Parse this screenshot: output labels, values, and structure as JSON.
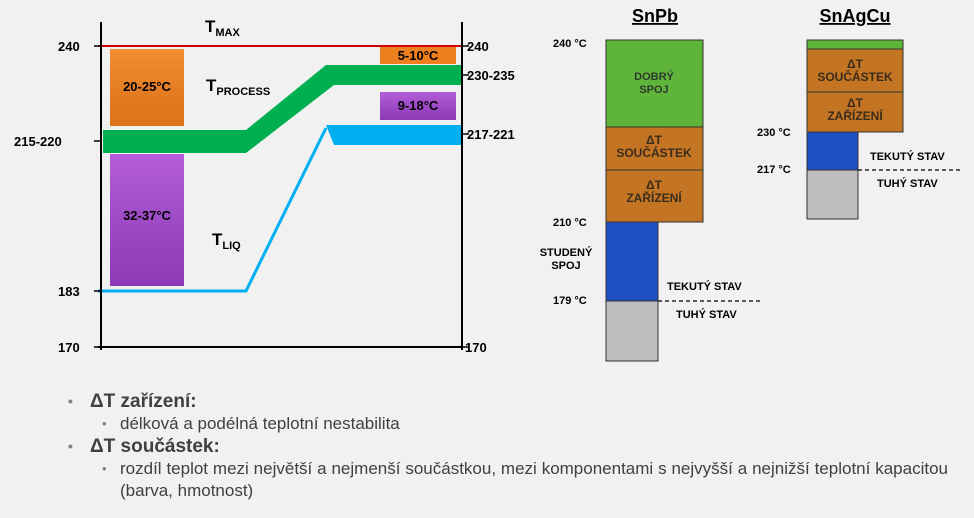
{
  "left_diagram": {
    "y_labels_left": [
      "240",
      "215-220",
      "183",
      "170"
    ],
    "y_labels_right": [
      "240",
      "230-235",
      "217-221",
      "170"
    ],
    "t_max": {
      "main": "T",
      "sub": "MAX"
    },
    "t_process": {
      "main": "T",
      "sub": "PROCESS"
    },
    "t_liq": {
      "main": "T",
      "sub": "LIQ"
    },
    "box_20_25": "20-25°C",
    "box_32_37": "32-37°C",
    "box_5_10": "5-10°C",
    "box_9_18": "9-18°C",
    "colors": {
      "tmax": "#cc0000",
      "process": "#00b050",
      "liquidus": "#00b0f0",
      "orange": "#ee7f1f",
      "purple": "#a24bcf"
    }
  },
  "snpb": {
    "title": "SnPb",
    "temp_240": "240 °C",
    "temp_210": "210 °C",
    "temp_179": "179 °C",
    "dobry_spoj": [
      "DOBRÝ",
      "SPOJ"
    ],
    "dt_soucastek": [
      "ΔT",
      "SOUČÁSTEK"
    ],
    "dt_zarizeni": [
      "ΔT",
      "ZAŘÍZENÍ"
    ],
    "studeny_spoj": [
      "STUDENÝ",
      "SPOJ"
    ],
    "tekuty_stav": "TEKUTÝ STAV",
    "tuhy_stav": "TUHÝ STAV"
  },
  "snagcu": {
    "title": "SnAgCu",
    "temp_230": "230 °C",
    "temp_217": "217 °C",
    "dt_soucastek": [
      "ΔT",
      "SOUČÁSTEK"
    ],
    "dt_zarizeni": [
      "ΔT",
      "ZAŘÍZENÍ"
    ],
    "tekuty_stav": "TEKUTÝ STAV",
    "tuhy_stav": "TUHÝ STAV"
  },
  "bullets": {
    "b1_title": "ΔT zařízení:",
    "b1_sub": "délková a podélná teplotní nestabilita",
    "b2_title": "ΔT součástek:",
    "b2_sub": "rozdíl teplot mezi největší a nejmenší součástkou, mezi komponentami s nejvyšší a nejnižší teplotní kapacitou (barva, hmotnost)"
  }
}
